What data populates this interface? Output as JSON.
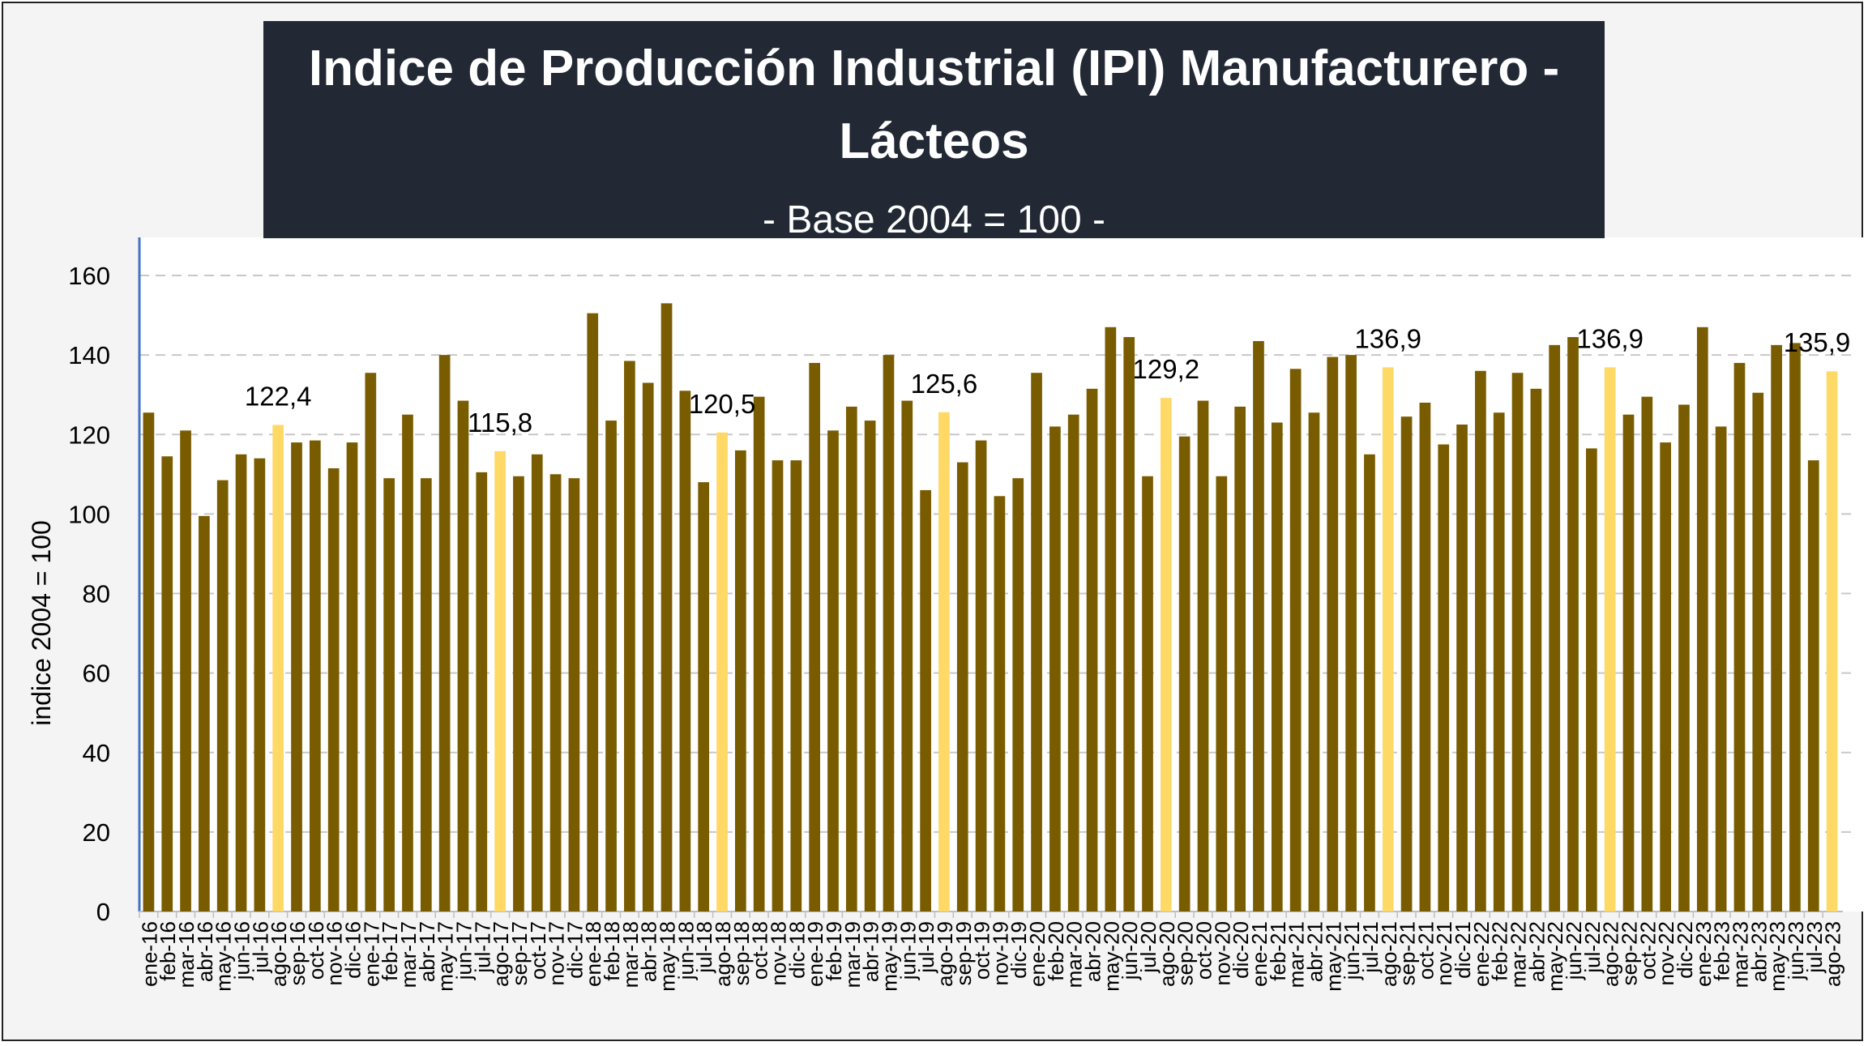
{
  "title": "Indice de Producción Industrial (IPI) Manufacturero - Lácteos",
  "subtitle": "- Base 2004 = 100 -",
  "colors": {
    "bar": "#7A5C00",
    "highlight": "#FFD966",
    "title_bg": "#222935",
    "grid": "#c8c8c8",
    "axis": "#4472C4"
  },
  "chart_data": {
    "type": "bar",
    "title": "Indice de Producción Industrial (IPI) Manufacturero - Lácteos",
    "subtitle": "- Base 2004 = 100 -",
    "xlabel": "",
    "ylabel": "indice 2004 = 100",
    "ylim": [
      0,
      160
    ],
    "yticks": [
      0,
      20,
      40,
      60,
      80,
      100,
      120,
      140,
      160
    ],
    "grid": true,
    "legend": "none",
    "categories": [
      "ene-16",
      "feb-16",
      "mar-16",
      "abr-16",
      "may-16",
      "jun-16",
      "jul-16",
      "ago-16",
      "sep-16",
      "oct-16",
      "nov-16",
      "dic-16",
      "ene-17",
      "feb-17",
      "mar-17",
      "abr-17",
      "may-17",
      "jun-17",
      "jul-17",
      "ago-17",
      "sep-17",
      "oct-17",
      "nov-17",
      "dic-17",
      "ene-18",
      "feb-18",
      "mar-18",
      "abr-18",
      "may-18",
      "jun-18",
      "jul-18",
      "ago-18",
      "sep-18",
      "oct-18",
      "nov-18",
      "dic-18",
      "ene-19",
      "feb-19",
      "mar-19",
      "abr-19",
      "may-19",
      "jun-19",
      "jul-19",
      "ago-19",
      "sep-19",
      "oct-19",
      "nov-19",
      "dic-19",
      "ene-20",
      "feb-20",
      "mar-20",
      "abr-20",
      "may-20",
      "jun-20",
      "jul-20",
      "ago-20",
      "sep-20",
      "oct-20",
      "nov-20",
      "dic-20",
      "ene-21",
      "feb-21",
      "mar-21",
      "abr-21",
      "may-21",
      "jun-21",
      "jul-21",
      "ago-21",
      "sep-21",
      "oct-21",
      "nov-21",
      "dic-21",
      "ene-22",
      "feb-22",
      "mar-22",
      "abr-22",
      "may-22",
      "jun-22",
      "jul-22",
      "ago-22",
      "sep-22",
      "oct-22",
      "nov-22",
      "dic-22",
      "ene-23",
      "feb-23",
      "mar-23",
      "abr-23",
      "may-23",
      "jun-23",
      "jul-23",
      "ago-23"
    ],
    "values": [
      125.5,
      114.5,
      121,
      99.5,
      108.5,
      115,
      114,
      122.4,
      118,
      118.5,
      111.5,
      118,
      135.5,
      109,
      125,
      109,
      140,
      128.5,
      110.5,
      115.8,
      109.5,
      115,
      110,
      109,
      150.5,
      123.5,
      138.5,
      133,
      153,
      131,
      108,
      120.5,
      116,
      129.5,
      113.5,
      113.5,
      138,
      121,
      127,
      123.5,
      140,
      128.5,
      106,
      125.6,
      113,
      118.5,
      104.5,
      109,
      135.5,
      122,
      125,
      131.5,
      147,
      144.5,
      109.5,
      129.2,
      119.5,
      128.5,
      109.5,
      127,
      143.5,
      123,
      136.5,
      125.5,
      139.5,
      140,
      115,
      136.9,
      124.5,
      128,
      117.5,
      122.5,
      136,
      125.5,
      135.5,
      131.5,
      142.5,
      144.5,
      116.5,
      136.9,
      125,
      129.5,
      118,
      127.5,
      147,
      122,
      138,
      130.5,
      142.5,
      143,
      113.5,
      135.9
    ],
    "highlight_indices": [
      7,
      19,
      31,
      43,
      55,
      67,
      79,
      91
    ],
    "data_labels": [
      {
        "index": 7,
        "text": "122,4"
      },
      {
        "index": 19,
        "text": "115,8"
      },
      {
        "index": 31,
        "text": "120,5"
      },
      {
        "index": 43,
        "text": "125,6"
      },
      {
        "index": 55,
        "text": "129,2"
      },
      {
        "index": 67,
        "text": "136,9"
      },
      {
        "index": 79,
        "text": "136,9"
      },
      {
        "index": 91,
        "text": "135,9"
      }
    ]
  }
}
